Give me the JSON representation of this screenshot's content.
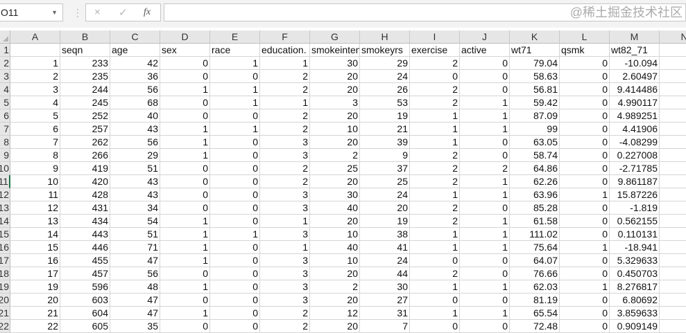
{
  "formula_bar": {
    "name_box": "O11",
    "cancel_icon": "×",
    "enter_icon": "✓",
    "fx_label": "fx",
    "formula": ""
  },
  "columns": [
    "A",
    "B",
    "C",
    "D",
    "E",
    "F",
    "G",
    "H",
    "I",
    "J",
    "K",
    "L",
    "M",
    "N"
  ],
  "row_numbers": [
    "1",
    "2",
    "3",
    "4",
    "5",
    "6",
    "7",
    "8",
    "9",
    "10",
    "11",
    "12",
    "13",
    "14",
    "15",
    "16",
    "17",
    "18",
    "19",
    "20",
    "21",
    "22"
  ],
  "selected_row": "11",
  "header_row": [
    "",
    "seqn",
    "age",
    "sex",
    "race",
    "education.",
    "smokeintensity",
    "smokeyrs",
    "exercise",
    "active",
    "wt71",
    "qsmk",
    "wt82_71",
    ""
  ],
  "rows": [
    [
      "1",
      "233",
      "42",
      "0",
      "1",
      "1",
      "30",
      "29",
      "2",
      "0",
      "79.04",
      "0",
      "-10.094"
    ],
    [
      "2",
      "235",
      "36",
      "0",
      "0",
      "2",
      "20",
      "24",
      "0",
      "0",
      "58.63",
      "0",
      "2.60497"
    ],
    [
      "3",
      "244",
      "56",
      "1",
      "1",
      "2",
      "20",
      "26",
      "2",
      "0",
      "56.81",
      "0",
      "9.414486"
    ],
    [
      "4",
      "245",
      "68",
      "0",
      "1",
      "1",
      "3",
      "53",
      "2",
      "1",
      "59.42",
      "0",
      "4.990117"
    ],
    [
      "5",
      "252",
      "40",
      "0",
      "0",
      "2",
      "20",
      "19",
      "1",
      "1",
      "87.09",
      "0",
      "4.989251"
    ],
    [
      "6",
      "257",
      "43",
      "1",
      "1",
      "2",
      "10",
      "21",
      "1",
      "1",
      "99",
      "0",
      "4.41906"
    ],
    [
      "7",
      "262",
      "56",
      "1",
      "0",
      "3",
      "20",
      "39",
      "1",
      "0",
      "63.05",
      "0",
      "-4.08299"
    ],
    [
      "8",
      "266",
      "29",
      "1",
      "0",
      "3",
      "2",
      "9",
      "2",
      "0",
      "58.74",
      "0",
      "0.227008"
    ],
    [
      "9",
      "419",
      "51",
      "0",
      "0",
      "2",
      "25",
      "37",
      "2",
      "2",
      "64.86",
      "0",
      "-2.71785"
    ],
    [
      "10",
      "420",
      "43",
      "0",
      "0",
      "2",
      "20",
      "25",
      "2",
      "1",
      "62.26",
      "0",
      "9.861187"
    ],
    [
      "11",
      "428",
      "43",
      "0",
      "0",
      "3",
      "30",
      "24",
      "1",
      "1",
      "63.96",
      "1",
      "15.87226"
    ],
    [
      "12",
      "431",
      "34",
      "0",
      "0",
      "3",
      "40",
      "20",
      "2",
      "0",
      "85.28",
      "0",
      "-1.819"
    ],
    [
      "13",
      "434",
      "54",
      "1",
      "0",
      "1",
      "20",
      "19",
      "2",
      "1",
      "61.58",
      "0",
      "0.562155"
    ],
    [
      "14",
      "443",
      "51",
      "1",
      "1",
      "3",
      "10",
      "38",
      "1",
      "1",
      "111.02",
      "0",
      "0.110131"
    ],
    [
      "15",
      "446",
      "71",
      "1",
      "0",
      "1",
      "40",
      "41",
      "1",
      "1",
      "75.64",
      "1",
      "-18.941"
    ],
    [
      "16",
      "455",
      "47",
      "1",
      "0",
      "3",
      "10",
      "24",
      "0",
      "0",
      "64.07",
      "0",
      "5.329633"
    ],
    [
      "17",
      "457",
      "56",
      "0",
      "0",
      "3",
      "20",
      "44",
      "2",
      "0",
      "76.66",
      "0",
      "0.450703"
    ],
    [
      "19",
      "596",
      "48",
      "1",
      "0",
      "3",
      "2",
      "30",
      "1",
      "1",
      "62.03",
      "1",
      "8.276817"
    ],
    [
      "20",
      "603",
      "47",
      "0",
      "0",
      "3",
      "20",
      "27",
      "0",
      "0",
      "81.19",
      "0",
      "6.80692"
    ],
    [
      "21",
      "604",
      "47",
      "1",
      "0",
      "2",
      "12",
      "31",
      "1",
      "1",
      "65.54",
      "0",
      "3.859633"
    ],
    [
      "22",
      "605",
      "35",
      "0",
      "0",
      "2",
      "20",
      "7",
      "0",
      "0",
      "72.48",
      "0",
      "0.909149"
    ]
  ],
  "watermark": "@稀土掘金技术社区"
}
